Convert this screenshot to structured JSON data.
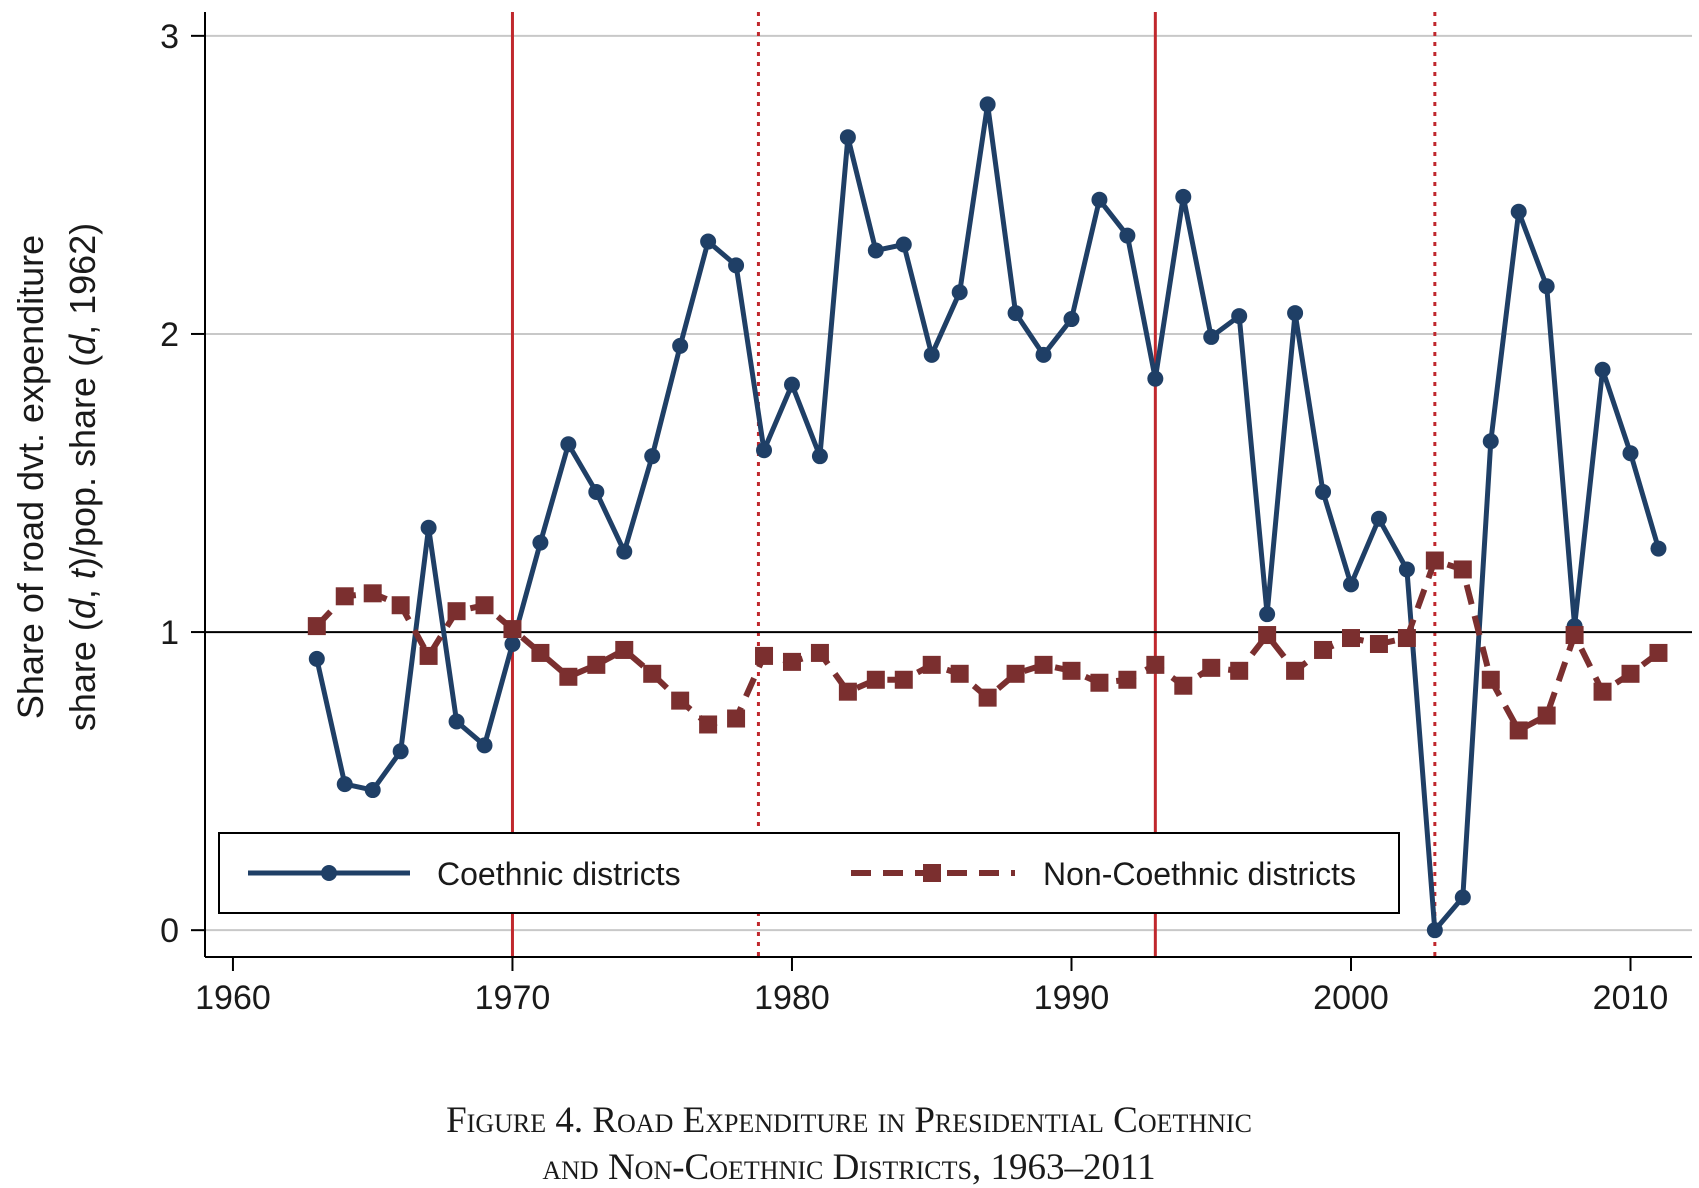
{
  "chart_data": {
    "type": "line",
    "caption": {
      "line1": "Figure 4. Road Expenditure in Presidential Coethnic",
      "line2": "and Non-Coethnic Districts, 1963–2011"
    },
    "ylabel_line1": "Share of road dvt. expenditure",
    "ylabel_line2_parts": [
      "share (",
      "d",
      ", ",
      "t",
      ")/pop. share (",
      "d",
      ", 1962)"
    ],
    "xlabel": "",
    "xlim": [
      1959.0,
      2012.2
    ],
    "ylim": [
      -0.09,
      3.08
    ],
    "xticks": [
      1960,
      1970,
      1980,
      1990,
      2000,
      2010
    ],
    "yticks": [
      0,
      1,
      2,
      3
    ],
    "grid": true,
    "reference_line": 1,
    "vlines_solid": [
      1970,
      1993
    ],
    "vlines_dotted": [
      1978.8,
      2003
    ],
    "legend_position": "bottom-left inside",
    "series": [
      {
        "name": "Coethnic districts",
        "color": "#1f3f66",
        "style": "solid",
        "marker": "circle",
        "x": [
          1963,
          1964,
          1965,
          1966,
          1967,
          1968,
          1969,
          1970,
          1971,
          1972,
          1973,
          1974,
          1975,
          1976,
          1977,
          1978,
          1979,
          1980,
          1981,
          1982,
          1983,
          1984,
          1985,
          1986,
          1987,
          1988,
          1989,
          1990,
          1991,
          1992,
          1993,
          1994,
          1995,
          1996,
          1997,
          1998,
          1999,
          2000,
          2001,
          2002,
          2003,
          2004,
          2005,
          2006,
          2007,
          2008,
          2009,
          2010,
          2011
        ],
        "y": [
          0.91,
          0.49,
          0.47,
          0.6,
          1.35,
          0.7,
          0.62,
          0.96,
          1.3,
          1.63,
          1.47,
          1.27,
          1.59,
          1.96,
          2.31,
          2.23,
          1.61,
          1.83,
          1.59,
          2.66,
          2.28,
          2.3,
          1.93,
          2.14,
          2.77,
          2.07,
          1.93,
          2.05,
          2.45,
          2.33,
          1.85,
          2.46,
          1.99,
          2.06,
          1.06,
          2.07,
          1.47,
          1.16,
          1.38,
          1.21,
          0.0,
          0.11,
          1.64,
          2.41,
          2.16,
          1.02,
          1.88,
          1.6,
          1.28
        ]
      },
      {
        "name": "Non-Coethnic districts",
        "color": "#7b2f2f",
        "style": "dashed",
        "marker": "square",
        "x": [
          1963,
          1964,
          1965,
          1966,
          1967,
          1968,
          1969,
          1970,
          1971,
          1972,
          1973,
          1974,
          1975,
          1976,
          1977,
          1978,
          1979,
          1980,
          1981,
          1982,
          1983,
          1984,
          1985,
          1986,
          1987,
          1988,
          1989,
          1990,
          1991,
          1992,
          1993,
          1994,
          1995,
          1996,
          1997,
          1998,
          1999,
          2000,
          2001,
          2002,
          2003,
          2004,
          2005,
          2006,
          2007,
          2008,
          2009,
          2010,
          2011
        ],
        "y": [
          1.02,
          1.12,
          1.13,
          1.09,
          0.92,
          1.07,
          1.09,
          1.01,
          0.93,
          0.85,
          0.89,
          0.94,
          0.86,
          0.77,
          0.69,
          0.71,
          0.92,
          0.9,
          0.93,
          0.8,
          0.84,
          0.84,
          0.89,
          0.86,
          0.78,
          0.86,
          0.89,
          0.87,
          0.83,
          0.84,
          0.89,
          0.82,
          0.88,
          0.87,
          0.99,
          0.87,
          0.94,
          0.98,
          0.96,
          0.98,
          1.24,
          1.21,
          0.84,
          0.67,
          0.72,
          0.99,
          0.8,
          0.86,
          0.93
        ]
      }
    ]
  }
}
